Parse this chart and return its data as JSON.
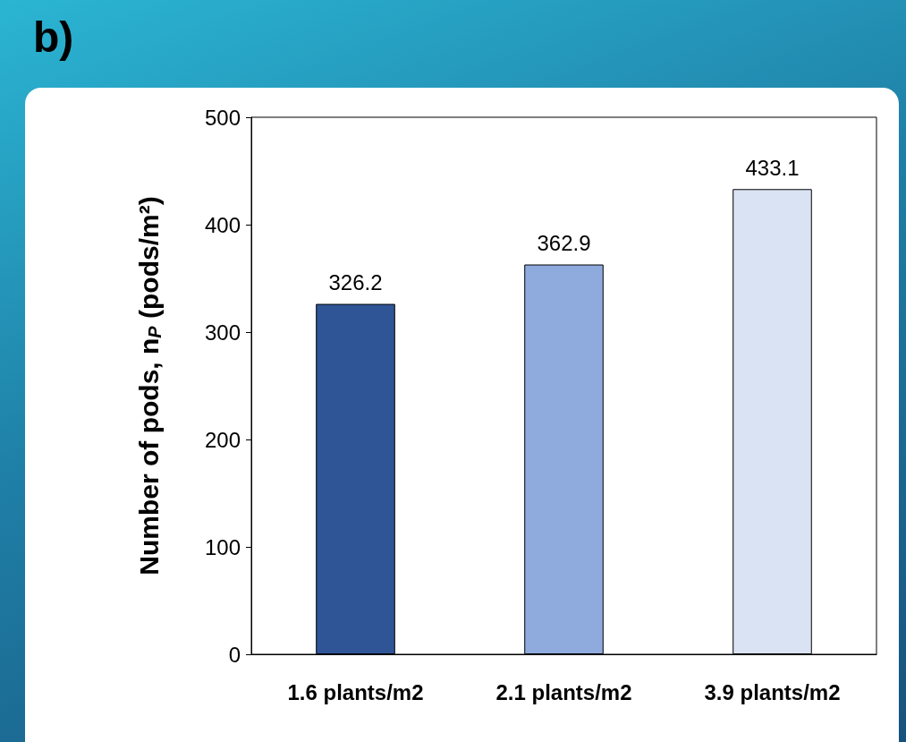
{
  "chart_data": {
    "type": "bar",
    "title": "b)",
    "ylabel": "Number of pods, n$_{P}$ (pods/m²)",
    "categories": [
      "1.6 plants/m2",
      "2.1 plants/m2",
      "3.9 plants/m2"
    ],
    "values": [
      326.2,
      362.9,
      433.1
    ],
    "colors": [
      "#2f5597",
      "#8faadc",
      "#dae3f3"
    ],
    "ylim": [
      0,
      500
    ],
    "yticks": [
      0,
      100,
      200,
      300,
      400,
      500
    ],
    "grid": false,
    "data_labels": true
  }
}
